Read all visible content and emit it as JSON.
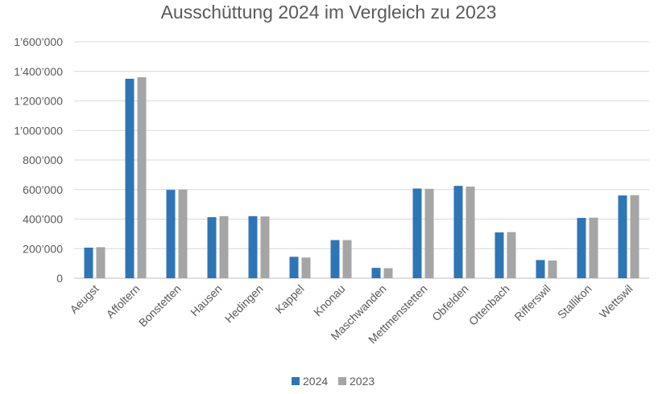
{
  "chart_data": {
    "type": "bar",
    "title": "Ausschüttung 2024 im Vergleich zu 2023",
    "xlabel": "",
    "ylabel": "",
    "categories": [
      "Aeugst",
      "Affoltern",
      "Bonstetten",
      "Hausen",
      "Hedingen",
      "Kappel",
      "Knonau",
      "Maschwanden",
      "Mettmenstetten",
      "Obfelden",
      "Ottenbach",
      "Rifferswil",
      "Stallikon",
      "Wettswil"
    ],
    "series": [
      {
        "name": "2024",
        "color": "#2e75b6",
        "values": [
          207000,
          1350000,
          598000,
          413000,
          420000,
          145000,
          258000,
          70000,
          607000,
          625000,
          310000,
          123000,
          408000,
          560000
        ]
      },
      {
        "name": "2023",
        "color": "#a5a5a5",
        "values": [
          210000,
          1360000,
          600000,
          420000,
          418000,
          140000,
          258000,
          68000,
          605000,
          620000,
          312000,
          120000,
          410000,
          562000
        ]
      }
    ],
    "ylim": [
      0,
      1600000
    ],
    "yticks": [
      0,
      200000,
      400000,
      600000,
      800000,
      1000000,
      1200000,
      1400000,
      1600000
    ],
    "ytick_labels": [
      "0",
      "200’000",
      "400’000",
      "600’000",
      "800’000",
      "1’000’000",
      "1’200’000",
      "1’400’000",
      "1’600’000"
    ],
    "grid": true,
    "legend_position": "bottom"
  }
}
